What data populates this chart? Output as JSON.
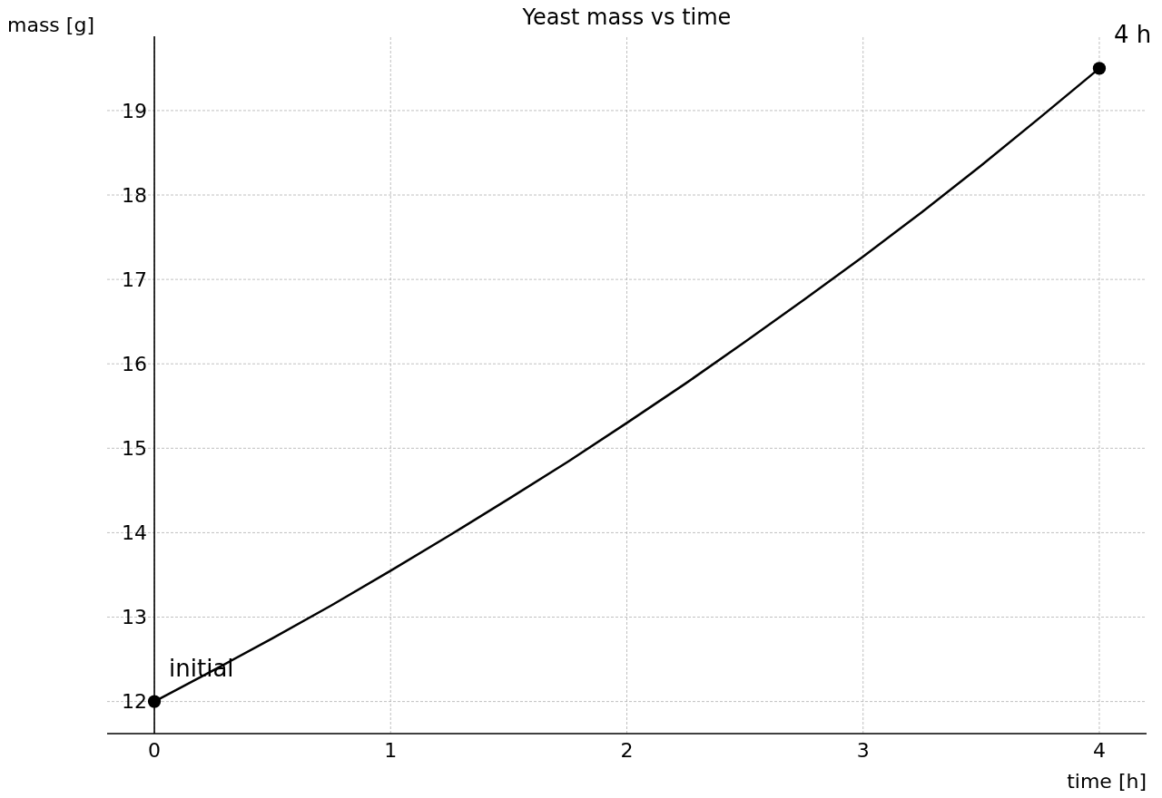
{
  "chart_data": {
    "type": "line",
    "title": "Yeast mass vs time",
    "xlabel": "time [h]",
    "ylabel": "mass [g]",
    "xlim": [
      -0.2,
      4.2
    ],
    "ylim": [
      11.62,
      19.88
    ],
    "xticks": [
      0,
      1,
      2,
      3,
      4
    ],
    "yticks": [
      12,
      13,
      14,
      15,
      16,
      17,
      18,
      19
    ],
    "grid": true,
    "series": [
      {
        "color": "#000000",
        "marker": "none",
        "x": [
          0,
          0.25,
          0.5,
          0.75,
          1,
          1.25,
          1.5,
          1.75,
          2,
          2.25,
          2.5,
          2.75,
          3,
          3.25,
          3.5,
          3.75,
          4
        ],
        "values": [
          12,
          12.37,
          12.75,
          13.14,
          13.55,
          13.97,
          14.4,
          14.84,
          15.3,
          15.77,
          16.26,
          16.76,
          17.27,
          17.8,
          18.35,
          18.92,
          19.5
        ]
      },
      {
        "type": "scatter",
        "color": "#000000",
        "marker": "circle",
        "x": [
          0,
          4
        ],
        "values": [
          12,
          19.5
        ]
      }
    ],
    "annotations": [
      {
        "text": "initial",
        "x": 0,
        "y": 12
      },
      {
        "text": "4 h",
        "x": 4,
        "y": 19.5
      }
    ]
  }
}
